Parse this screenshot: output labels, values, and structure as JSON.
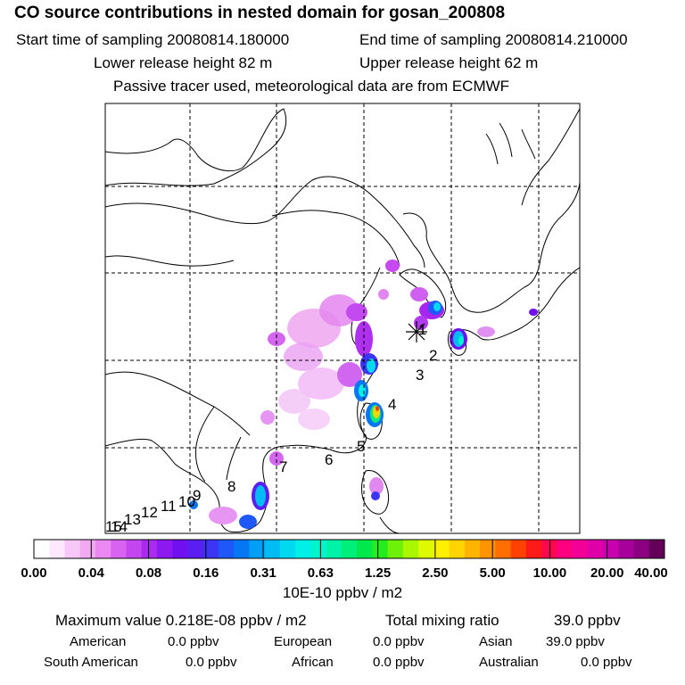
{
  "header": {
    "title": "CO  source contributions in nested domain for gosan_200808",
    "start_label": "Start time of sampling 20080814.180000",
    "end_label": "End time of sampling 20080814.210000",
    "lower_label": "Lower release height   82 m",
    "upper_label": "Upper release height   62 m",
    "note": "Passive tracer used, meteorological data are from ECMWF"
  },
  "chart_data": {
    "type": "heatmap",
    "title": "CO  source contributions in nested domain for gosan_200808",
    "grid": true,
    "receptor_marker": "*",
    "point_labels": [
      "1",
      "2",
      "3",
      "4",
      "5",
      "6",
      "7",
      "8",
      "9",
      "10",
      "11",
      "12",
      "13",
      "14",
      "15"
    ],
    "colorbar": {
      "ticks": [
        "0.00",
        "0.04",
        "0.08",
        "0.16",
        "0.31",
        "0.63",
        "1.25",
        "2.50",
        "5.00",
        "10.00",
        "20.00",
        "40.00"
      ],
      "unit_label": "10E-10 ppbv / m2",
      "colors": [
        "#ffffff",
        "#fde8fd",
        "#f7c8f7",
        "#f1a9f1",
        "#eb88f1",
        "#d863f1",
        "#c446f1",
        "#ab2af0",
        "#8d18f0",
        "#7010f0",
        "#5a1ef3",
        "#3d35f5",
        "#1f58f8",
        "#0577f5",
        "#009ef5",
        "#00bcf2",
        "#00d9f0",
        "#00f0e8",
        "#00f5cd",
        "#00f1a8",
        "#00ee7a",
        "#00e84b",
        "#25ec1f",
        "#6ef10a",
        "#a9f700",
        "#dff900",
        "#fff000",
        "#ffd400",
        "#ffb400",
        "#ff9400",
        "#ff6e00",
        "#ff4200",
        "#ff1a1a",
        "#ff0850",
        "#ff0080",
        "#f20098",
        "#e000a8",
        "#c800b0",
        "#a8009a",
        "#8a0080",
        "#640058"
      ]
    }
  },
  "footer": {
    "max_label": "Maximum value  0.218E-08 ppbv / m2",
    "total_label": "Total mixing ratio",
    "total_value": "39.0 ppbv",
    "sources": [
      {
        "name": "American",
        "value": "0.0 ppbv"
      },
      {
        "name": "European",
        "value": "0.0 ppbv"
      },
      {
        "name": "Asian",
        "value": "39.0 ppbv"
      },
      {
        "name": "South American",
        "value": "0.0 ppbv"
      },
      {
        "name": "African",
        "value": "0.0 ppbv"
      },
      {
        "name": "Australian",
        "value": "0.0 ppbv"
      }
    ]
  }
}
